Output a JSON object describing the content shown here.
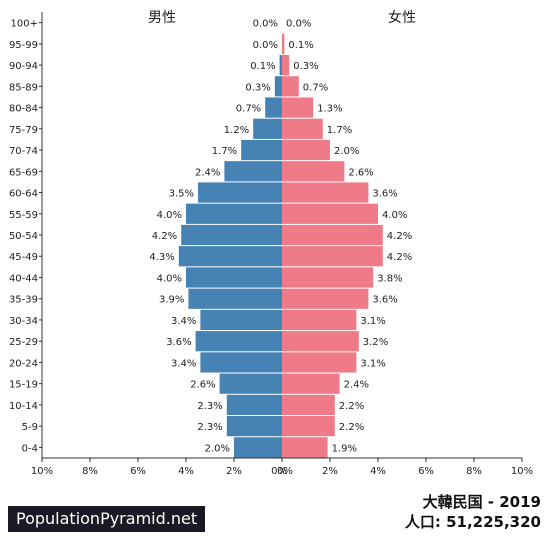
{
  "chart_data": {
    "type": "bar",
    "orientation": "horizontal",
    "categories": [
      "0-4",
      "5-9",
      "10-14",
      "15-19",
      "20-24",
      "25-29",
      "30-34",
      "35-39",
      "40-44",
      "45-49",
      "50-54",
      "55-59",
      "60-64",
      "65-69",
      "70-74",
      "75-79",
      "80-84",
      "85-89",
      "90-94",
      "95-99",
      "100+"
    ],
    "series": [
      {
        "name": "男性",
        "color": "#4682b4",
        "values": [
          2.0,
          2.3,
          2.3,
          2.6,
          3.4,
          3.6,
          3.4,
          3.9,
          4.0,
          4.3,
          4.2,
          4.0,
          3.5,
          2.4,
          1.7,
          1.2,
          0.7,
          0.3,
          0.1,
          0.0,
          0.0
        ]
      },
      {
        "name": "女性",
        "color": "#ef7b89",
        "values": [
          1.9,
          2.2,
          2.2,
          2.4,
          3.1,
          3.2,
          3.1,
          3.6,
          3.8,
          4.2,
          4.2,
          4.0,
          3.6,
          2.6,
          2.0,
          1.7,
          1.3,
          0.7,
          0.3,
          0.1,
          0.0
        ]
      }
    ],
    "value_labels": {
      "male": [
        "2.0%",
        "2.3%",
        "2.3%",
        "2.6%",
        "3.4%",
        "3.6%",
        "3.4%",
        "3.9%",
        "4.0%",
        "4.3%",
        "4.2%",
        "4.0%",
        "3.5%",
        "2.4%",
        "1.7%",
        "1.2%",
        "0.7%",
        "0.3%",
        "0.1%",
        "0.0%",
        "0.0%"
      ],
      "female": [
        "1.9%",
        "2.2%",
        "2.2%",
        "2.4%",
        "3.1%",
        "3.2%",
        "3.1%",
        "3.6%",
        "3.8%",
        "4.2%",
        "4.2%",
        "4.0%",
        "3.6%",
        "2.6%",
        "2.0%",
        "1.7%",
        "1.3%",
        "0.7%",
        "0.3%",
        "0.1%",
        "0.0%"
      ]
    },
    "xlim": [
      0,
      10
    ],
    "xticks_left": [
      "10%",
      "8%",
      "6%",
      "4%",
      "2%",
      "0%"
    ],
    "xticks_right": [
      "0%",
      "2%",
      "4%",
      "6%",
      "8%",
      "10%"
    ],
    "grid": false
  },
  "header": {
    "male_label": "男性",
    "female_label": "女性"
  },
  "footer": {
    "title": "大韓民国 - 2019",
    "population": "人口: 51,225,320",
    "brand": "PopulationPyramid.net"
  }
}
